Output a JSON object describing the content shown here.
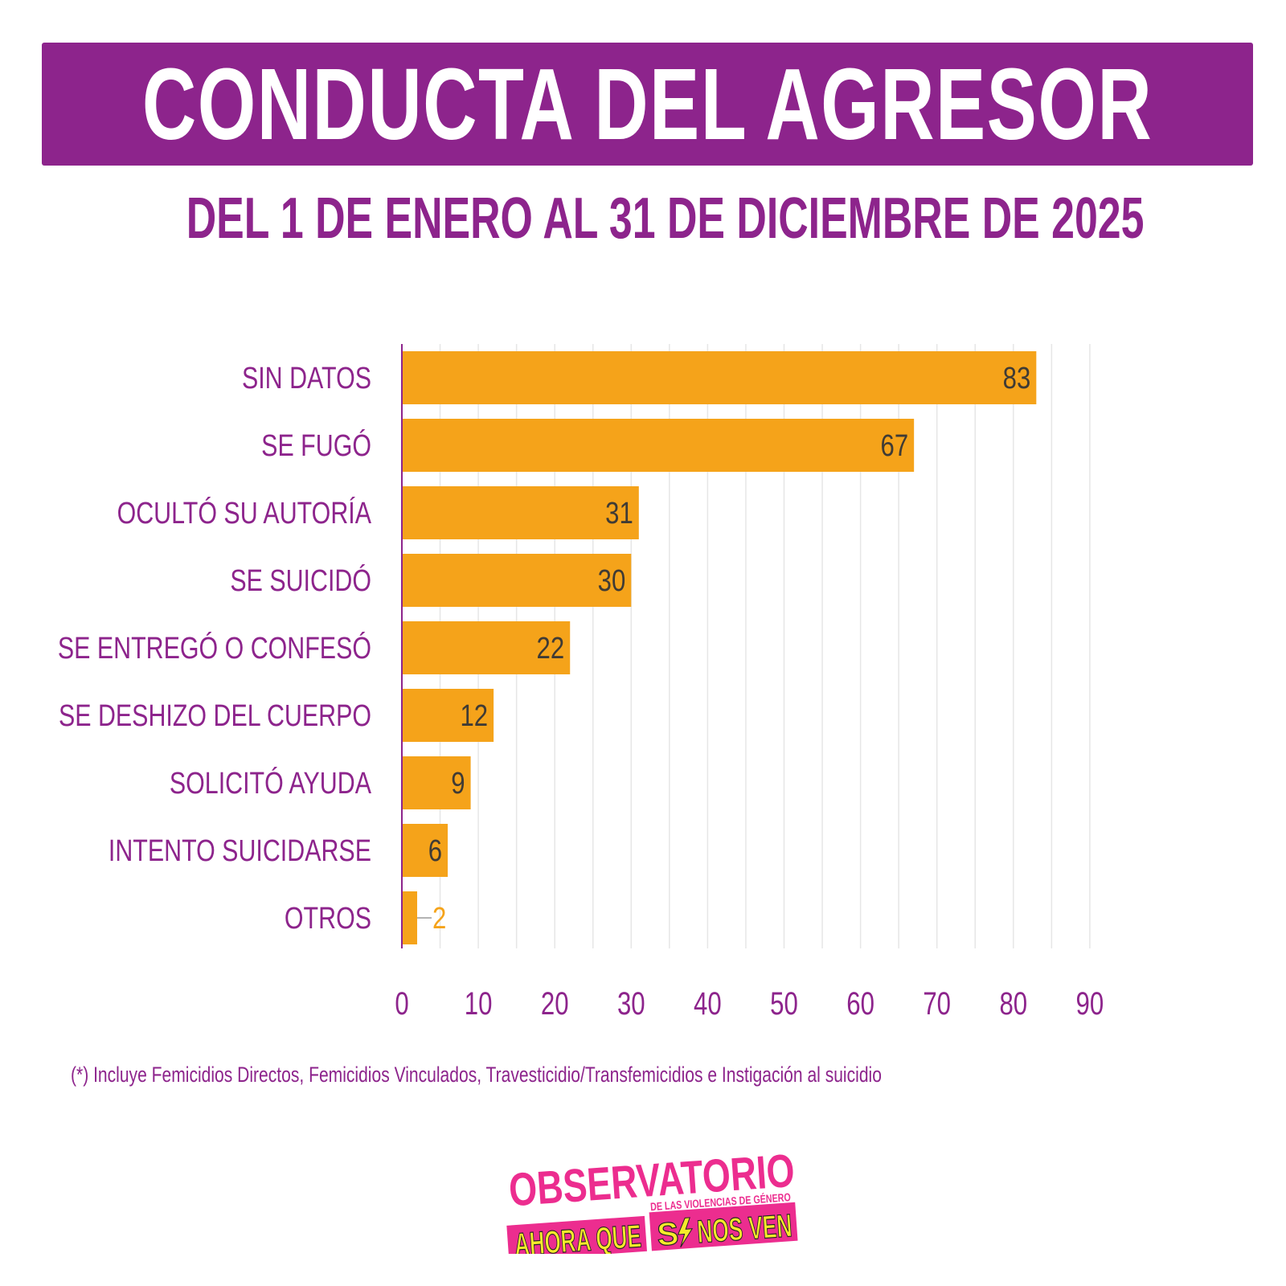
{
  "header": {
    "title": "CONDUCTA DEL AGRESOR",
    "subtitle": "DEL 1 DE ENERO AL 31 DE DICIEMBRE DE 2025"
  },
  "colors": {
    "brand_purple": "#8d248c",
    "bar_orange": "#f5a31a",
    "value_label_dark": "#3f3b35",
    "gridline": "#e6e6e6",
    "logo_pink": "#ec2d8f",
    "logo_yellow": "#f6ea2a"
  },
  "chart_data": {
    "type": "bar",
    "orientation": "horizontal",
    "title": "CONDUCTA DEL AGRESOR",
    "subtitle": "DEL 1 DE ENERO AL 31 DE DICIEMBRE DE 2025",
    "categories": [
      "SIN DATOS",
      "SE FUGÓ",
      "OCULTÓ SU AUTORÍA",
      "SE SUICIDÓ",
      "SE ENTREGÓ O CONFESÓ",
      "SE DESHIZO DEL CUERPO",
      "SOLICITÓ AYUDA",
      "INTENTO SUICIDARSE",
      "OTROS"
    ],
    "values": [
      83,
      67,
      31,
      30,
      22,
      12,
      9,
      6,
      2
    ],
    "data_labels": [
      "83",
      "67",
      "31",
      "30",
      "22",
      "12",
      "9",
      "6",
      "2"
    ],
    "xlabel": "",
    "ylabel": "",
    "xlim": [
      0,
      90
    ],
    "xticks": [
      0,
      10,
      20,
      30,
      40,
      50,
      60,
      70,
      80,
      90
    ],
    "xtick_labels": [
      "0",
      "10",
      "20",
      "30",
      "40",
      "50",
      "60",
      "70",
      "80",
      "90"
    ],
    "minor_grid_step": 5,
    "grid": true,
    "legend": "none"
  },
  "footnote": "(*) Incluye Femicidios Directos, Femicidios Vinculados,  Travesticidio/Transfemicidios e Instigación al suicidio",
  "logo": {
    "line1": "OBSERVATORIO",
    "line2": "DE LAS VIOLENCIAS DE GÉNERO",
    "line3a": "AHORA QUE",
    "line3b": "S",
    "line3c": "NOS VEN"
  }
}
